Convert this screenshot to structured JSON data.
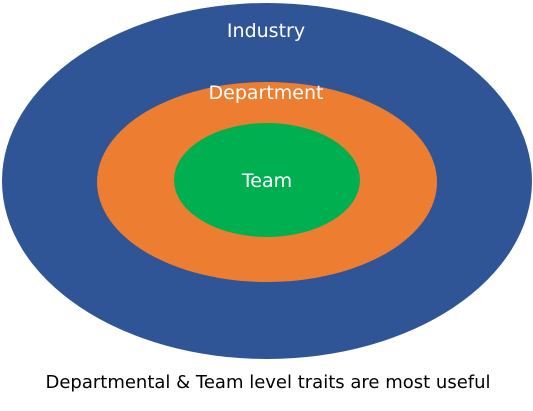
{
  "diagram": {
    "outer": {
      "label": "Industry",
      "color": "#2f5597"
    },
    "middle": {
      "label": "Department",
      "color": "#ed7d31"
    },
    "inner": {
      "label": "Team",
      "color": "#00b050"
    }
  },
  "caption": "Departmental & Team level traits are most useful"
}
